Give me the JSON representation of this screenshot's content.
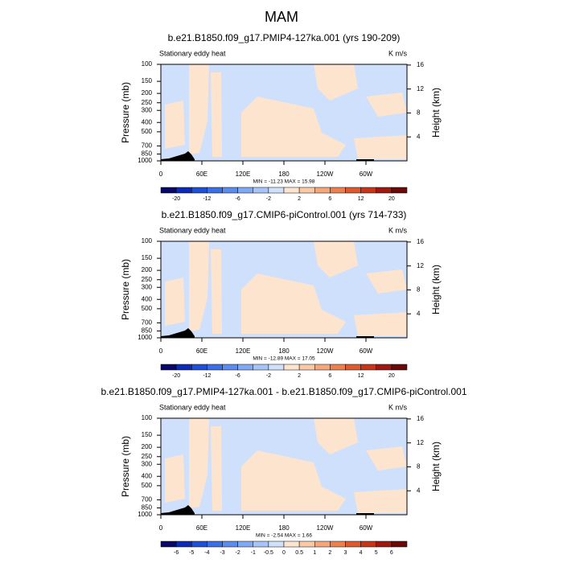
{
  "title": "MAM",
  "chart_data": [
    {
      "type": "contour",
      "title": "b.e21.B1850.f09_g17.PMIP4-127ka.001 (yrs 190-209)",
      "left_label": "Stationary eddy heat",
      "right_label": "K m/s",
      "ylabel": "Pressure (mb)",
      "y2label": "Height (km)",
      "ylim": [
        1000,
        100
      ],
      "log_y": true,
      "yticks": [
        100,
        150,
        200,
        250,
        300,
        400,
        500,
        700,
        850,
        1000
      ],
      "y2ticks": [
        4,
        8,
        12,
        16
      ],
      "xlim": [
        0,
        360
      ],
      "xticks": [
        0,
        {
          "value": 60,
          "label": "60E"
        },
        {
          "value": 120,
          "label": "120E"
        },
        180,
        {
          "value": 240,
          "label": "120W"
        },
        {
          "value": 300,
          "label": "60W"
        }
      ],
      "annotation": "MIN = -11.23  MAX = 15.98",
      "colorbar": {
        "levels": [
          -20,
          -12,
          -6,
          -2,
          2,
          6,
          12,
          20
        ],
        "colors": [
          "#08086b",
          "#0c2ab8",
          "#1f4fd6",
          "#3a6fe6",
          "#5b8cf0",
          "#7fa8f5",
          "#a6c4fa",
          "#cfe0fd",
          "#fde4cf",
          "#fbc9a6",
          "#f5a57a",
          "#ee7f4f",
          "#e0592c",
          "#c8361a",
          "#a11810",
          "#6b0808"
        ]
      }
    },
    {
      "type": "contour",
      "title": "b.e21.B1850.f09_g17.CMIP6-piControl.001 (yrs 714-733)",
      "left_label": "Stationary eddy heat",
      "right_label": "K m/s",
      "ylabel": "Pressure (mb)",
      "y2label": "Height (km)",
      "ylim": [
        1000,
        100
      ],
      "log_y": true,
      "yticks": [
        100,
        150,
        200,
        250,
        300,
        400,
        500,
        700,
        850,
        1000
      ],
      "y2ticks": [
        4,
        8,
        12,
        16
      ],
      "xlim": [
        0,
        360
      ],
      "xticks": [
        0,
        {
          "value": 60,
          "label": "60E"
        },
        {
          "value": 120,
          "label": "120E"
        },
        180,
        {
          "value": 240,
          "label": "120W"
        },
        {
          "value": 300,
          "label": "60W"
        }
      ],
      "annotation": "MIN = -12.89  MAX = 17.05",
      "colorbar": {
        "levels": [
          -20,
          -12,
          -6,
          -2,
          2,
          6,
          12,
          20
        ],
        "colors": [
          "#08086b",
          "#0c2ab8",
          "#1f4fd6",
          "#3a6fe6",
          "#5b8cf0",
          "#7fa8f5",
          "#a6c4fa",
          "#cfe0fd",
          "#fde4cf",
          "#fbc9a6",
          "#f5a57a",
          "#ee7f4f",
          "#e0592c",
          "#c8361a",
          "#a11810",
          "#6b0808"
        ]
      }
    },
    {
      "type": "contour",
      "title": "b.e21.B1850.f09_g17.PMIP4-127ka.001 - b.e21.B1850.f09_g17.CMIP6-piControl.001",
      "left_label": "Stationary eddy heat",
      "right_label": "K m/s",
      "ylabel": "Pressure (mb)",
      "y2label": "Height (km)",
      "ylim": [
        1000,
        100
      ],
      "log_y": true,
      "yticks": [
        100,
        150,
        200,
        250,
        300,
        400,
        500,
        700,
        850,
        1000
      ],
      "y2ticks": [
        4,
        8,
        12,
        16
      ],
      "xlim": [
        0,
        360
      ],
      "xticks": [
        0,
        {
          "value": 60,
          "label": "60E"
        },
        {
          "value": 120,
          "label": "120E"
        },
        180,
        {
          "value": 240,
          "label": "120W"
        },
        {
          "value": 300,
          "label": "60W"
        }
      ],
      "annotation": "MIN = -2.54  MAX = 1.66",
      "colorbar": {
        "levels": [
          -6,
          -5,
          -4,
          -3,
          -2,
          -1,
          -0.5,
          0,
          0.5,
          1,
          2,
          3,
          4,
          5,
          6
        ],
        "colors": [
          "#08086b",
          "#0c2ab8",
          "#1f4fd6",
          "#3a6fe6",
          "#5b8cf0",
          "#7fa8f5",
          "#a6c4fa",
          "#cfe0fd",
          "#fde4cf",
          "#fbc9a6",
          "#f5a57a",
          "#ee7f4f",
          "#e0592c",
          "#c8361a",
          "#a11810",
          "#6b0808"
        ]
      }
    }
  ]
}
